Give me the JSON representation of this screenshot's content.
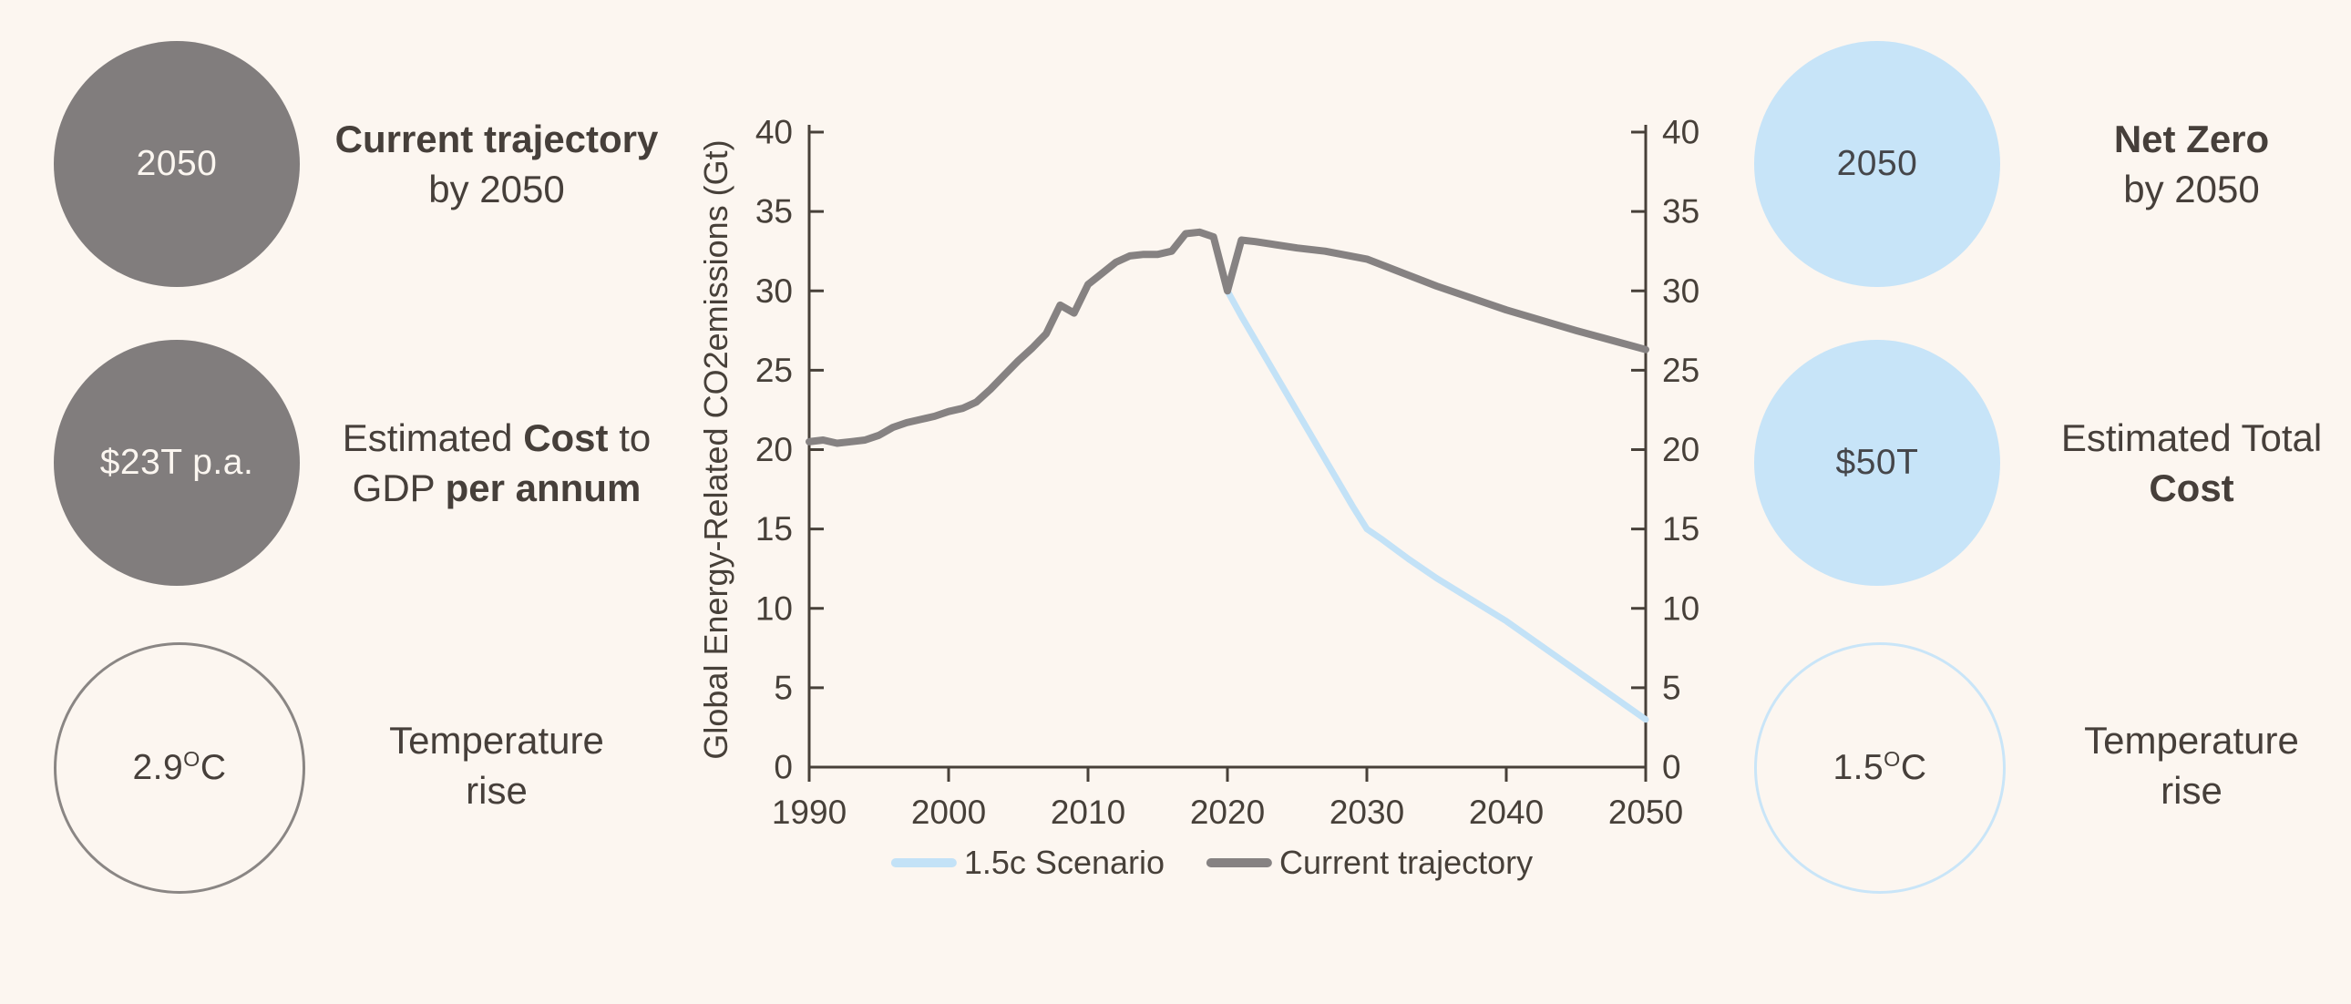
{
  "colors": {
    "background": "#fcf6f0",
    "text": "#463f3a",
    "axis": "#474039",
    "gray_fill": "#817d7d",
    "gray_line": "#868282",
    "blue_fill": "#c7e4f8",
    "blue_line": "#c3e2f7"
  },
  "stats": {
    "left": [
      {
        "circle": {
          "text": "2050"
        },
        "label": [
          [
            {
              "text": "Current trajectory",
              "bold": true
            }
          ],
          [
            {
              "text": "by 2050",
              "bold": false
            }
          ]
        ]
      },
      {
        "circle": {
          "text": "$23T p.a."
        },
        "label": [
          [
            {
              "text": "Estimated ",
              "bold": false
            },
            {
              "text": "Cost",
              "bold": true
            },
            {
              "text": " to",
              "bold": false
            }
          ],
          [
            {
              "text": "GDP ",
              "bold": false
            },
            {
              "text": "per annum",
              "bold": true
            }
          ]
        ]
      },
      {
        "circle": {
          "value": "2.9",
          "sup": "O",
          "unit": "C"
        },
        "label": [
          [
            {
              "text": "Temperature",
              "bold": false
            }
          ],
          [
            {
              "text": "rise",
              "bold": false
            }
          ]
        ]
      }
    ],
    "right": [
      {
        "circle": {
          "text": "2050"
        },
        "label": [
          [
            {
              "text": "Net Zero",
              "bold": true
            }
          ],
          [
            {
              "text": "by 2050",
              "bold": false
            }
          ]
        ]
      },
      {
        "circle": {
          "text": "$50T"
        },
        "label": [
          [
            {
              "text": "Estimated Total",
              "bold": false
            }
          ],
          [
            {
              "text": "Cost",
              "bold": true
            }
          ]
        ]
      },
      {
        "circle": {
          "value": "1.5",
          "sup": "O",
          "unit": "C"
        },
        "label": [
          [
            {
              "text": "Temperature",
              "bold": false
            }
          ],
          [
            {
              "text": "rise",
              "bold": false
            }
          ]
        ]
      }
    ]
  },
  "chart_data": {
    "type": "line",
    "title": "",
    "xlabel": "",
    "ylabel": "Global Energy-Related CO2emissions (Gt)",
    "xlim": [
      1990,
      2050
    ],
    "ylim": [
      0,
      40
    ],
    "xticks": [
      1990,
      2000,
      2010,
      2020,
      2030,
      2040,
      2050
    ],
    "yticks": [
      0,
      5,
      10,
      15,
      20,
      25,
      30,
      35,
      40
    ],
    "grid": false,
    "legend_position": "bottom",
    "dual_y_axis": true,
    "series": [
      {
        "name": "1.5c Scenario",
        "color": "#c3e2f7",
        "width": 7,
        "x": [
          2020,
          2021,
          2023,
          2025,
          2027,
          2029,
          2030,
          2031,
          2033,
          2035,
          2040,
          2045,
          2050
        ],
        "y": [
          30.0,
          28.4,
          25.4,
          22.4,
          19.4,
          16.4,
          15.0,
          14.4,
          13.1,
          11.9,
          9.2,
          6.1,
          3.0
        ]
      },
      {
        "name": "Current trajectory",
        "color": "#868282",
        "width": 8,
        "x": [
          1990,
          1991,
          1992,
          1993,
          1994,
          1995,
          1996,
          1997,
          1998,
          1999,
          2000,
          2001,
          2002,
          2003,
          2004,
          2005,
          2006,
          2007,
          2008,
          2009,
          2010,
          2011,
          2012,
          2013,
          2014,
          2015,
          2016,
          2017,
          2018,
          2019,
          2020,
          2021,
          2022,
          2025,
          2027,
          2030,
          2035,
          2040,
          2045,
          2050
        ],
        "y": [
          20.5,
          20.6,
          20.4,
          20.5,
          20.6,
          20.9,
          21.4,
          21.7,
          21.9,
          22.1,
          22.4,
          22.6,
          23.0,
          23.8,
          24.7,
          25.6,
          26.4,
          27.3,
          29.1,
          28.6,
          30.4,
          31.1,
          31.8,
          32.2,
          32.3,
          32.3,
          32.5,
          33.6,
          33.7,
          33.4,
          30.0,
          33.2,
          33.1,
          32.7,
          32.5,
          32.0,
          30.3,
          28.8,
          27.5,
          26.3
        ]
      }
    ]
  }
}
